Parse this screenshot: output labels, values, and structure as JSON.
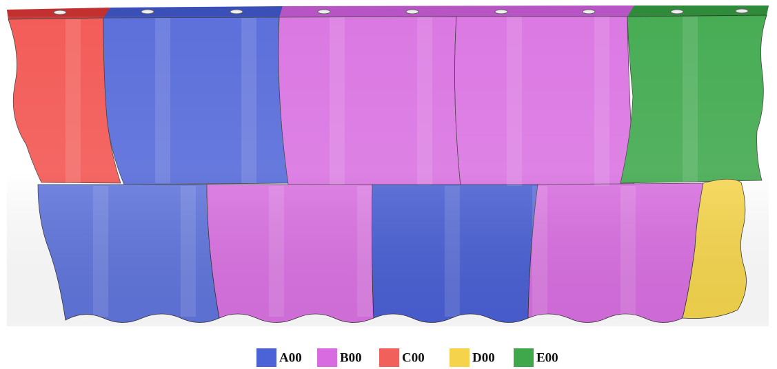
{
  "legend": [
    {
      "label": "A00",
      "color": "#4b63d6"
    },
    {
      "label": "B00",
      "color": "#d86be0"
    },
    {
      "label": "C00",
      "color": "#f2605c"
    },
    {
      "label": "D00",
      "color": "#f5d44c"
    },
    {
      "label": "E00",
      "color": "#3fa84a"
    }
  ]
}
